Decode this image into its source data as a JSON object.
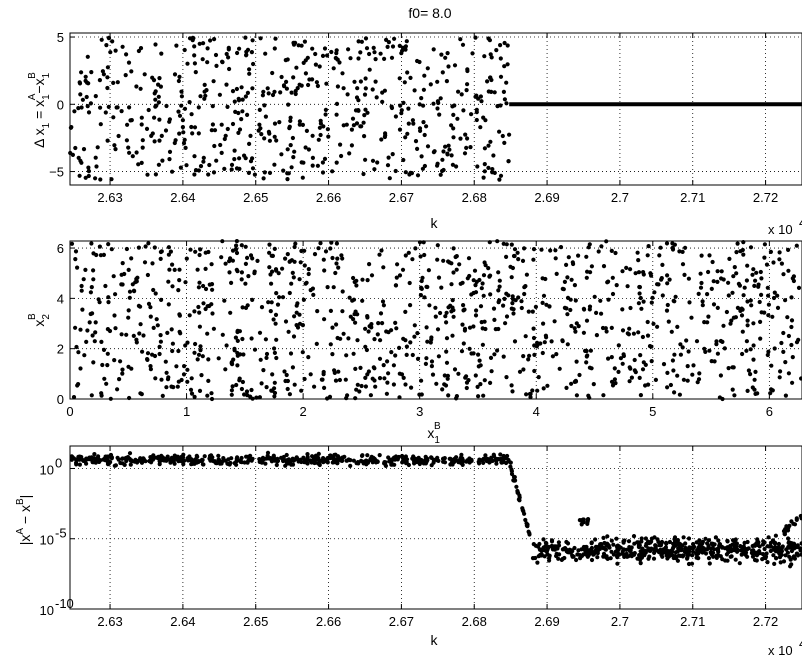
{
  "title": "f0= 8.0",
  "chart_data": [
    {
      "type": "scatter",
      "name": "delta-x1",
      "title": "f0= 8.0",
      "xlabel": "k",
      "ylabel": "Δ x1 = x1A − x1B",
      "ylabel_parts": [
        "Δ x",
        "1",
        " = x",
        "1",
        "A",
        "−x",
        "1",
        "B"
      ],
      "xlim": [
        26245,
        27250
      ],
      "ylim": [
        -6,
        5.3
      ],
      "xticks": [
        26300,
        26400,
        26500,
        26600,
        26700,
        26800,
        26900,
        27000,
        27100,
        27200
      ],
      "xtick_labels": [
        "2.63",
        "2.64",
        "2.65",
        "2.66",
        "2.67",
        "2.68",
        "2.69",
        "2.7",
        "2.71",
        "2.72"
      ],
      "yticks": [
        5,
        0,
        -5
      ],
      "ytick_labels": [
        "5",
        "0",
        "−5"
      ],
      "x_exponent_label": "x 10",
      "grid": true,
      "series": [
        {
          "kind": "random",
          "x_range": [
            26245,
            26848
          ],
          "y_range": [
            -5.6,
            5.0
          ],
          "count": 620,
          "seed": 11
        },
        {
          "kind": "flat",
          "x_range": [
            26848,
            27250
          ],
          "y": 0
        }
      ]
    },
    {
      "type": "scatter",
      "name": "x2B-vs-x1B",
      "xlabel": "x1B",
      "xlabel_parts": [
        "x",
        "1",
        "B"
      ],
      "ylabel": "x2B",
      "ylabel_parts": [
        "x",
        "2",
        "B"
      ],
      "xlim": [
        0,
        6.28
      ],
      "ylim": [
        0,
        6.28
      ],
      "xticks": [
        0,
        1,
        2,
        3,
        4,
        5,
        6
      ],
      "xtick_labels": [
        "0",
        "1",
        "2",
        "3",
        "4",
        "5",
        "6"
      ],
      "yticks": [
        0,
        2,
        4,
        6
      ],
      "ytick_labels": [
        "0",
        "2",
        "4",
        "6"
      ],
      "grid": true,
      "series": [
        {
          "kind": "random",
          "x_range": [
            0,
            6.28
          ],
          "y_range": [
            0,
            6.28
          ],
          "count": 1150,
          "seed": 29
        }
      ]
    },
    {
      "type": "scatter",
      "name": "abs-diff-log",
      "xlabel": "k",
      "ylabel": "|xA − xB|",
      "ylabel_parts": [
        "|x",
        "A",
        " − x",
        "B",
        "|"
      ],
      "xlim": [
        26245,
        27250
      ],
      "ylim_log10": [
        -10,
        1.6
      ],
      "log_scale": "y",
      "xticks": [
        26300,
        26400,
        26500,
        26600,
        26700,
        26800,
        26900,
        27000,
        27100,
        27200
      ],
      "xtick_labels": [
        "2.63",
        "2.64",
        "2.65",
        "2.66",
        "2.67",
        "2.68",
        "2.69",
        "2.7",
        "2.71",
        "2.72"
      ],
      "yticks_log10": [
        0,
        -5,
        -10
      ],
      "ytick_bases": [
        "10",
        "10",
        "10"
      ],
      "ytick_exps": [
        "0",
        "-5",
        "-10"
      ],
      "x_exponent_label": "x 10",
      "grid": true,
      "series": [
        {
          "kind": "band",
          "x_range": [
            26245,
            26848
          ],
          "log_center": 0.6,
          "log_spread": 0.55,
          "count": 520,
          "seed": 5
        },
        {
          "kind": "decay",
          "x_range": [
            26848,
            26880
          ],
          "log_from": 0.5,
          "log_to": -5.5,
          "count": 30,
          "seed": 7
        },
        {
          "kind": "band",
          "x_range": [
            26880,
            27250
          ],
          "log_center": -5.8,
          "log_spread": 1.2,
          "count": 540,
          "seed": 13
        },
        {
          "kind": "bump",
          "x_range": [
            26945,
            26960
          ],
          "log_center": -3.7,
          "log_spread": 0.4,
          "count": 14,
          "seed": 17
        },
        {
          "kind": "rise",
          "x_range": [
            27225,
            27250
          ],
          "log_from": -4.5,
          "log_to": -3.3,
          "count": 18,
          "seed": 23
        }
      ]
    }
  ]
}
